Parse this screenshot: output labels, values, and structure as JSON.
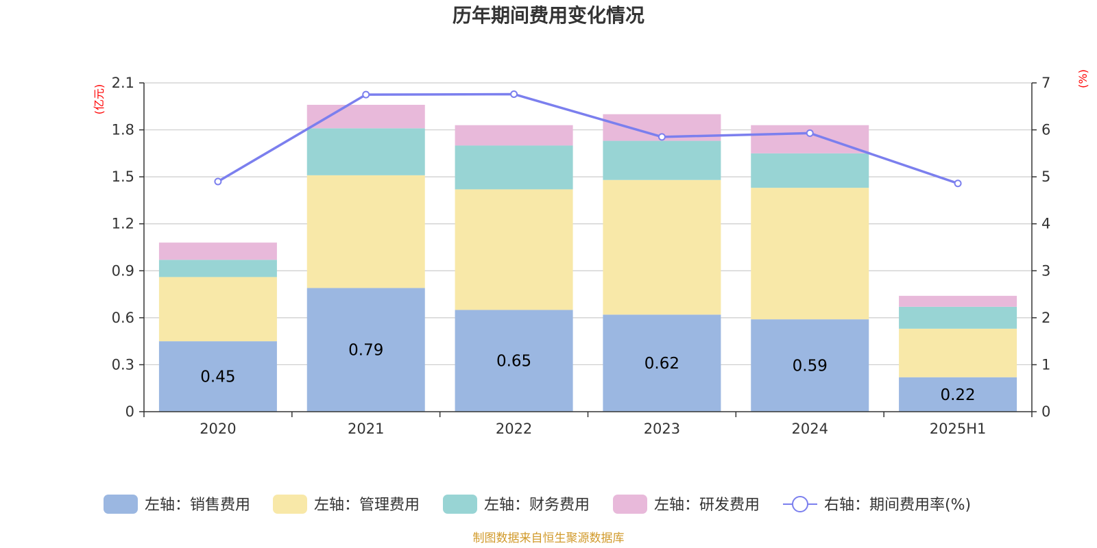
{
  "chart_data": {
    "type": "bar",
    "title": "历年期间费用变化情况",
    "categories": [
      "2020",
      "2021",
      "2022",
      "2023",
      "2024",
      "2025H1"
    ],
    "y_left": {
      "unit": "(亿元)",
      "ylim": [
        0,
        2.1
      ],
      "ticks": [
        "0",
        "0.3",
        "0.6",
        "0.9",
        "1.2",
        "1.5",
        "1.8",
        "2.1"
      ]
    },
    "y_right": {
      "unit": "(%)",
      "ylim": [
        0,
        7
      ],
      "ticks": [
        "0",
        "1",
        "2",
        "3",
        "4",
        "5",
        "6",
        "7"
      ]
    },
    "series": [
      {
        "name": "左轴：销售费用",
        "type": "bar",
        "axis": "left",
        "color": "#9bb7e1",
        "values": [
          0.45,
          0.79,
          0.65,
          0.62,
          0.59,
          0.22
        ],
        "labels": [
          "0.45",
          "0.79",
          "0.65",
          "0.62",
          "0.59",
          "0.22"
        ]
      },
      {
        "name": "左轴：管理费用",
        "type": "bar",
        "axis": "left",
        "color": "#f8e8a8",
        "values": [
          0.41,
          0.72,
          0.77,
          0.86,
          0.84,
          0.31
        ]
      },
      {
        "name": "左轴：财务费用",
        "type": "bar",
        "axis": "left",
        "color": "#98d4d4",
        "values": [
          0.11,
          0.3,
          0.28,
          0.25,
          0.22,
          0.14
        ]
      },
      {
        "name": "左轴：研发费用",
        "type": "bar",
        "axis": "left",
        "color": "#e8b9da",
        "values": [
          0.11,
          0.15,
          0.13,
          0.17,
          0.18,
          0.07
        ]
      },
      {
        "name": "右轴：期间费用率(%)",
        "type": "line",
        "axis": "right",
        "color": "#7b7fee",
        "values": [
          4.9,
          6.75,
          6.76,
          5.85,
          5.93,
          4.86
        ]
      }
    ],
    "grid": true,
    "legend": "bottom-center"
  },
  "footer": {
    "source": "制图数据来自恒生聚源数据库"
  }
}
